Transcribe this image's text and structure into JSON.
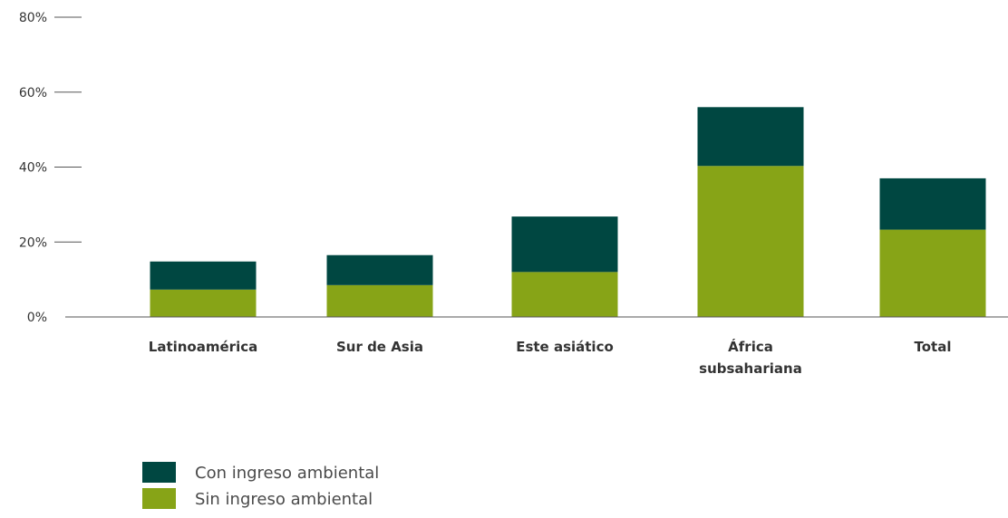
{
  "chart_data": {
    "type": "bar",
    "stacked": true,
    "categories": [
      [
        "Latinoamérica"
      ],
      [
        "Sur de Asia"
      ],
      [
        "Este asiático"
      ],
      [
        "África",
        "subsahariana"
      ],
      [
        "Total"
      ]
    ],
    "series": [
      {
        "name": "Sin ingreso ambiental",
        "color": "#87A417",
        "values": [
          7.3,
          8.5,
          12.0,
          40.3,
          23.3
        ]
      },
      {
        "name": "Con ingreso ambiental",
        "color": "#004741",
        "values": [
          7.5,
          8.0,
          14.8,
          15.7,
          13.7
        ]
      }
    ],
    "y_ticks": [
      "0%",
      "20%",
      "40%",
      "60%",
      "80%"
    ],
    "y_tick_values": [
      0,
      20,
      40,
      60,
      80
    ],
    "ylim": [
      0,
      80
    ],
    "grid": false,
    "title": "",
    "xlabel": "",
    "ylabel": "",
    "legend": {
      "position": "bottom-left",
      "order": [
        "Con ingreso ambiental",
        "Sin ingreso ambiental"
      ]
    },
    "axis_color": "#555555"
  }
}
